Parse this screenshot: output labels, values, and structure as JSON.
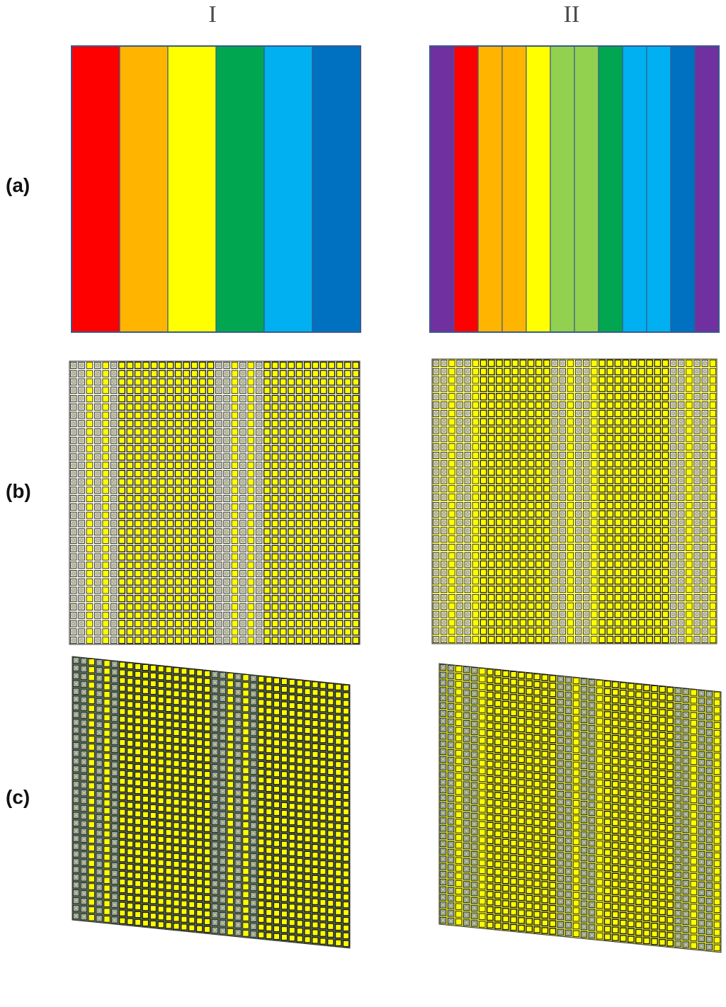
{
  "columns": [
    {
      "id": "I",
      "label": "I"
    },
    {
      "id": "II",
      "label": "II"
    }
  ],
  "rows": [
    {
      "id": "a",
      "label": "(a)"
    },
    {
      "id": "b",
      "label": "(b)"
    },
    {
      "id": "c",
      "label": "(c)"
    }
  ],
  "palette": {
    "red": "#ff0000",
    "orange": "#ffb400",
    "yellow": "#ffff00",
    "lightgreen": "#92d050",
    "green": "#00a650",
    "lightblue": "#00b0f0",
    "blue": "#0070c0",
    "purple": "#7030a0",
    "border": "#3a5a8c",
    "cellYellow": "#ffff00",
    "cellGrey": "#d4d4cc",
    "cellGreyDark": "#9fb3a8",
    "cellOutline": "#1a1a1a"
  },
  "layouts": {
    "I": {
      "stripes": [
        "red",
        "orange",
        "yellow",
        "green",
        "lightblue",
        "blue"
      ],
      "fiberRegions": [
        true,
        false,
        false,
        true,
        false,
        false
      ]
    },
    "II": {
      "stripes": [
        "purple",
        "red",
        "orange",
        "orange",
        "yellow",
        "lightgreen",
        "lightgreen",
        "green",
        "lightblue",
        "lightblue",
        "blue",
        "purple"
      ],
      "fiberRegions": [
        true,
        true,
        false,
        false,
        false,
        true,
        true,
        false,
        false,
        false,
        true,
        true
      ]
    }
  }
}
